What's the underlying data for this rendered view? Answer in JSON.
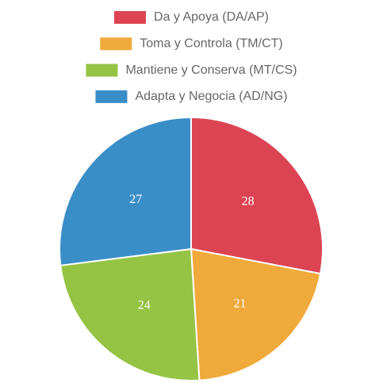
{
  "chart_data": {
    "type": "pie",
    "categories": [
      "Da y Apoya (DA/AP)",
      "Toma y Controla (TM/CT)",
      "Mantiene y Conserva (MT/CS)",
      "Adapta y Negocia (AD/NG)"
    ],
    "values": [
      28,
      21,
      24,
      27
    ],
    "colors": [
      "#dc4453",
      "#f0a93b",
      "#95c343",
      "#3a8ec8"
    ],
    "legend": "top"
  }
}
